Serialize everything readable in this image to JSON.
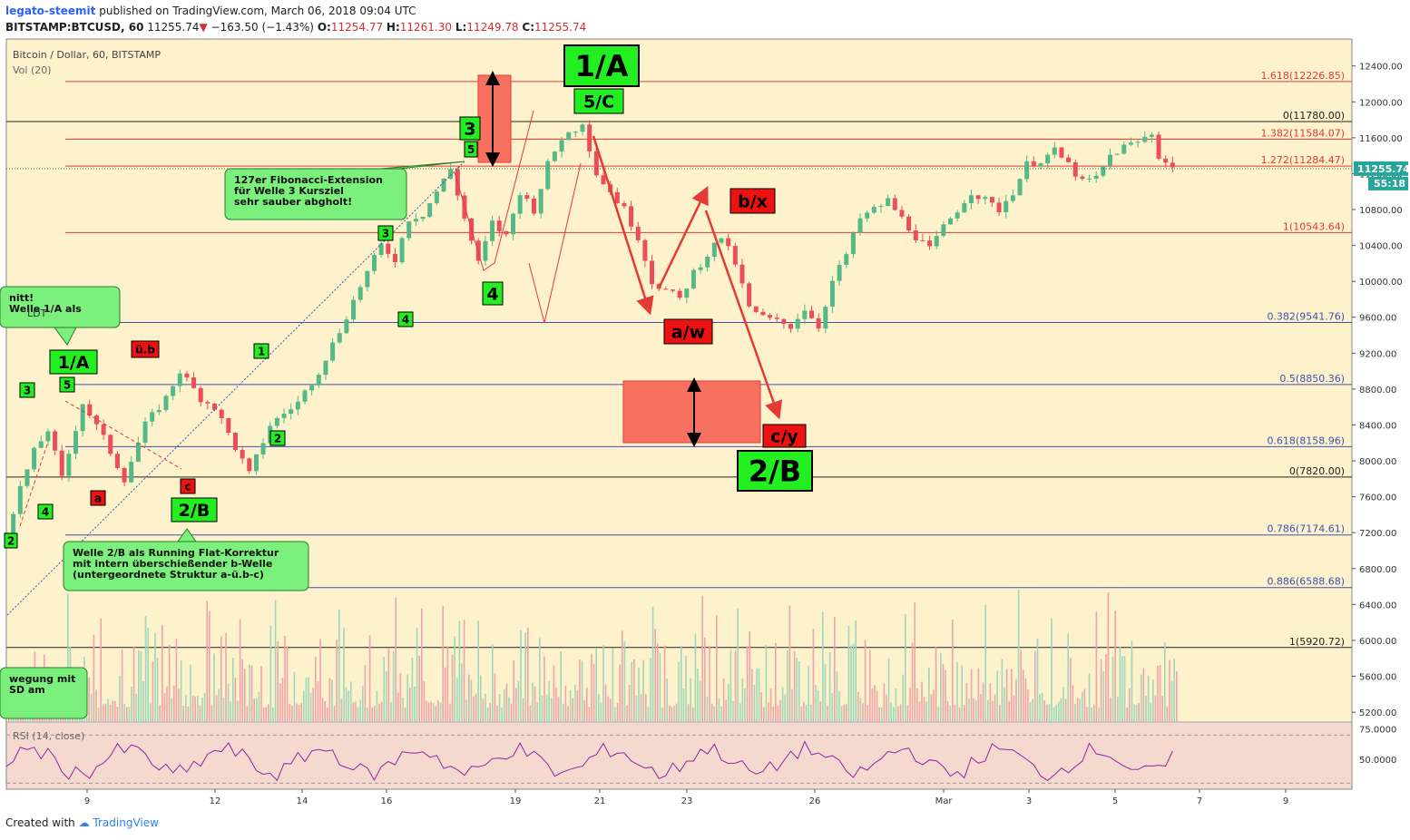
{
  "header": {
    "author": "legato-steemit",
    "published_text": "published on TradingView.com, March 06, 2018 09:04 UTC",
    "symbol": "BITSTAMP:BTCUSD, 60",
    "last": "11255.74",
    "change": "−163.50 (−1.43%)",
    "o_label": "O:",
    "o": "11254.77",
    "h_label": "H:",
    "h": "11261.30",
    "l_label": "L:",
    "l": "11249.78",
    "c_label": "C:",
    "c": "11255.74"
  },
  "footer": {
    "created_with": "Created with",
    "brand": "TradingView"
  },
  "colors": {
    "bg": "#fdf2cc",
    "up": "#53b987",
    "down": "#eb4d5c",
    "fib_red": "#e53935",
    "fib_blue": "#3f51b5",
    "label_green": "#22ee22",
    "label_red": "#ee1111",
    "rsi_bg": "#f5d9cf",
    "rsi_line": "#8e24aa"
  },
  "chart_data": {
    "type": "candlestick",
    "title": "Bitcoin / Dollar, 60, BITSTAMP",
    "volume_label": "Vol (20)",
    "rsi_label": "RSI (14, close)",
    "y_ticks": [
      5200,
      5600,
      6000,
      6400,
      6800,
      7200,
      7600,
      8000,
      8400,
      8800,
      9200,
      9600,
      10000,
      10400,
      10800,
      11200,
      11600,
      12000,
      12400
    ],
    "y_tick_labels": [
      "5200.00",
      "5600.00",
      "6000.00",
      "6400.00",
      "6800.00",
      "7200.00",
      "7600.00",
      "8000.00",
      "8400.00",
      "8800.00",
      "9200.00",
      "9600.00",
      "10000.00",
      "10400.00",
      "10800.00",
      "11200.00",
      "11600.00",
      "12000.00",
      "12400.00"
    ],
    "ylim": [
      5100,
      12700
    ],
    "x_ticks": [
      "9",
      "12",
      "14",
      "16",
      "19",
      "21",
      "23",
      "26",
      "Mar",
      "3",
      "5",
      "7",
      "9"
    ],
    "rsi_ticks": [
      "75.0000",
      "50.0000"
    ],
    "rsi_range": [
      25,
      80
    ],
    "last_price_tag": "11255.74",
    "countdown_tag": "55:18",
    "fib_levels": [
      {
        "label": "1.618(12226.85)",
        "value": 12226.85,
        "color": "red"
      },
      {
        "label": "0(11780.00)",
        "value": 11780.0,
        "color": "black"
      },
      {
        "label": "1.382(11584.07)",
        "value": 11584.07,
        "color": "red"
      },
      {
        "label": "1.272(11284.47)",
        "value": 11284.47,
        "color": "red"
      },
      {
        "label": "1(10543.64)",
        "value": 10543.64,
        "color": "red"
      },
      {
        "label": "0.382(9541.76)",
        "value": 9541.76,
        "color": "blue"
      },
      {
        "label": "0.5(8850.36)",
        "value": 8850.36,
        "color": "blue"
      },
      {
        "label": "0.618(8158.96)",
        "value": 8158.96,
        "color": "blue"
      },
      {
        "label": "0(7820.00)",
        "value": 7820.0,
        "color": "black"
      },
      {
        "label": "0.786(7174.61)",
        "value": 7174.61,
        "color": "blue"
      },
      {
        "label": "0.886(6588.68)",
        "value": 6588.68,
        "color": "blue"
      },
      {
        "label": "1(5920.72)",
        "value": 5920.72,
        "color": "black"
      }
    ],
    "price_path": [
      [
        0,
        7200
      ],
      [
        2,
        7700
      ],
      [
        4,
        8100
      ],
      [
        6,
        8350
      ],
      [
        8,
        7800
      ],
      [
        11,
        8650
      ],
      [
        14,
        8250
      ],
      [
        17,
        7800
      ],
      [
        20,
        8400
      ],
      [
        23,
        8700
      ],
      [
        25,
        9000
      ],
      [
        28,
        8700
      ],
      [
        30,
        8600
      ],
      [
        33,
        8150
      ],
      [
        35,
        7850
      ],
      [
        38,
        8400
      ],
      [
        42,
        8650
      ],
      [
        45,
        9000
      ],
      [
        48,
        9450
      ],
      [
        51,
        9950
      ],
      [
        54,
        10400
      ],
      [
        56,
        10250
      ],
      [
        58,
        10700
      ],
      [
        60,
        10750
      ],
      [
        62,
        11000
      ],
      [
        64,
        11250
      ],
      [
        66,
        10700
      ],
      [
        68,
        10200
      ],
      [
        70,
        10650
      ],
      [
        72,
        10500
      ],
      [
        74,
        11000
      ],
      [
        76,
        10800
      ],
      [
        78,
        11300
      ],
      [
        80,
        11600
      ],
      [
        82,
        11700
      ],
      [
        83,
        11780
      ],
      [
        85,
        11200
      ],
      [
        87,
        11000
      ],
      [
        89,
        10800
      ],
      [
        91,
        10500
      ],
      [
        93,
        10000
      ],
      [
        95,
        9900
      ],
      [
        97,
        9800
      ],
      [
        99,
        10100
      ],
      [
        101,
        10300
      ],
      [
        103,
        10500
      ],
      [
        105,
        10200
      ],
      [
        107,
        9700
      ],
      [
        109,
        9600
      ],
      [
        111,
        9550
      ],
      [
        113,
        9500
      ],
      [
        115,
        9700
      ],
      [
        117,
        9500
      ],
      [
        119,
        10000
      ],
      [
        121,
        10300
      ],
      [
        123,
        10700
      ],
      [
        125,
        10800
      ],
      [
        127,
        10900
      ],
      [
        129,
        10700
      ],
      [
        131,
        10500
      ],
      [
        133,
        10350
      ],
      [
        135,
        10600
      ],
      [
        137,
        10800
      ],
      [
        139,
        11000
      ],
      [
        141,
        10900
      ],
      [
        143,
        10800
      ],
      [
        145,
        11000
      ],
      [
        147,
        11300
      ],
      [
        149,
        11350
      ],
      [
        151,
        11450
      ],
      [
        153,
        11300
      ],
      [
        155,
        11100
      ],
      [
        157,
        11150
      ],
      [
        159,
        11400
      ],
      [
        161,
        11500
      ],
      [
        163,
        11550
      ],
      [
        165,
        11650
      ],
      [
        166,
        11400
      ],
      [
        168,
        11255
      ]
    ],
    "volume_level": [
      5300,
      6300
    ],
    "annotations": {
      "big_1A": "1/A",
      "big_2B": "2/B",
      "lbl_5C": "5/C",
      "lbl_1A_small": "1/A",
      "lbl_2B_small": "2/B",
      "lbl_aw": "a/w",
      "lbl_bx": "b/x",
      "lbl_cy": "c/y",
      "lbl_ub": "ü.b",
      "lbl_a": "a",
      "lbl_c": "c",
      "n1": "1",
      "n2": "2",
      "n3": "3",
      "n4": "4",
      "n5": "5",
      "box_fib_line1": "127er Fibonacci-Extension",
      "box_fib_line2": "für Welle 3 Kursziel",
      "box_fib_line3": "sehr sauber abgholt!",
      "box_flat_line1": "Welle 2/B als Running Flat-Korrektur",
      "box_flat_line2": "mit intern überschießender b-Welle",
      "box_flat_line3": "(untergeordnete Struktur a-ü.b-c)",
      "box_left_top1": "nitt!",
      "box_left_top2": "Welle 1/A als",
      "box_left_top3": "LDT",
      "box_left_bot1": "wegung mit",
      "box_left_bot2": "SD am"
    }
  }
}
